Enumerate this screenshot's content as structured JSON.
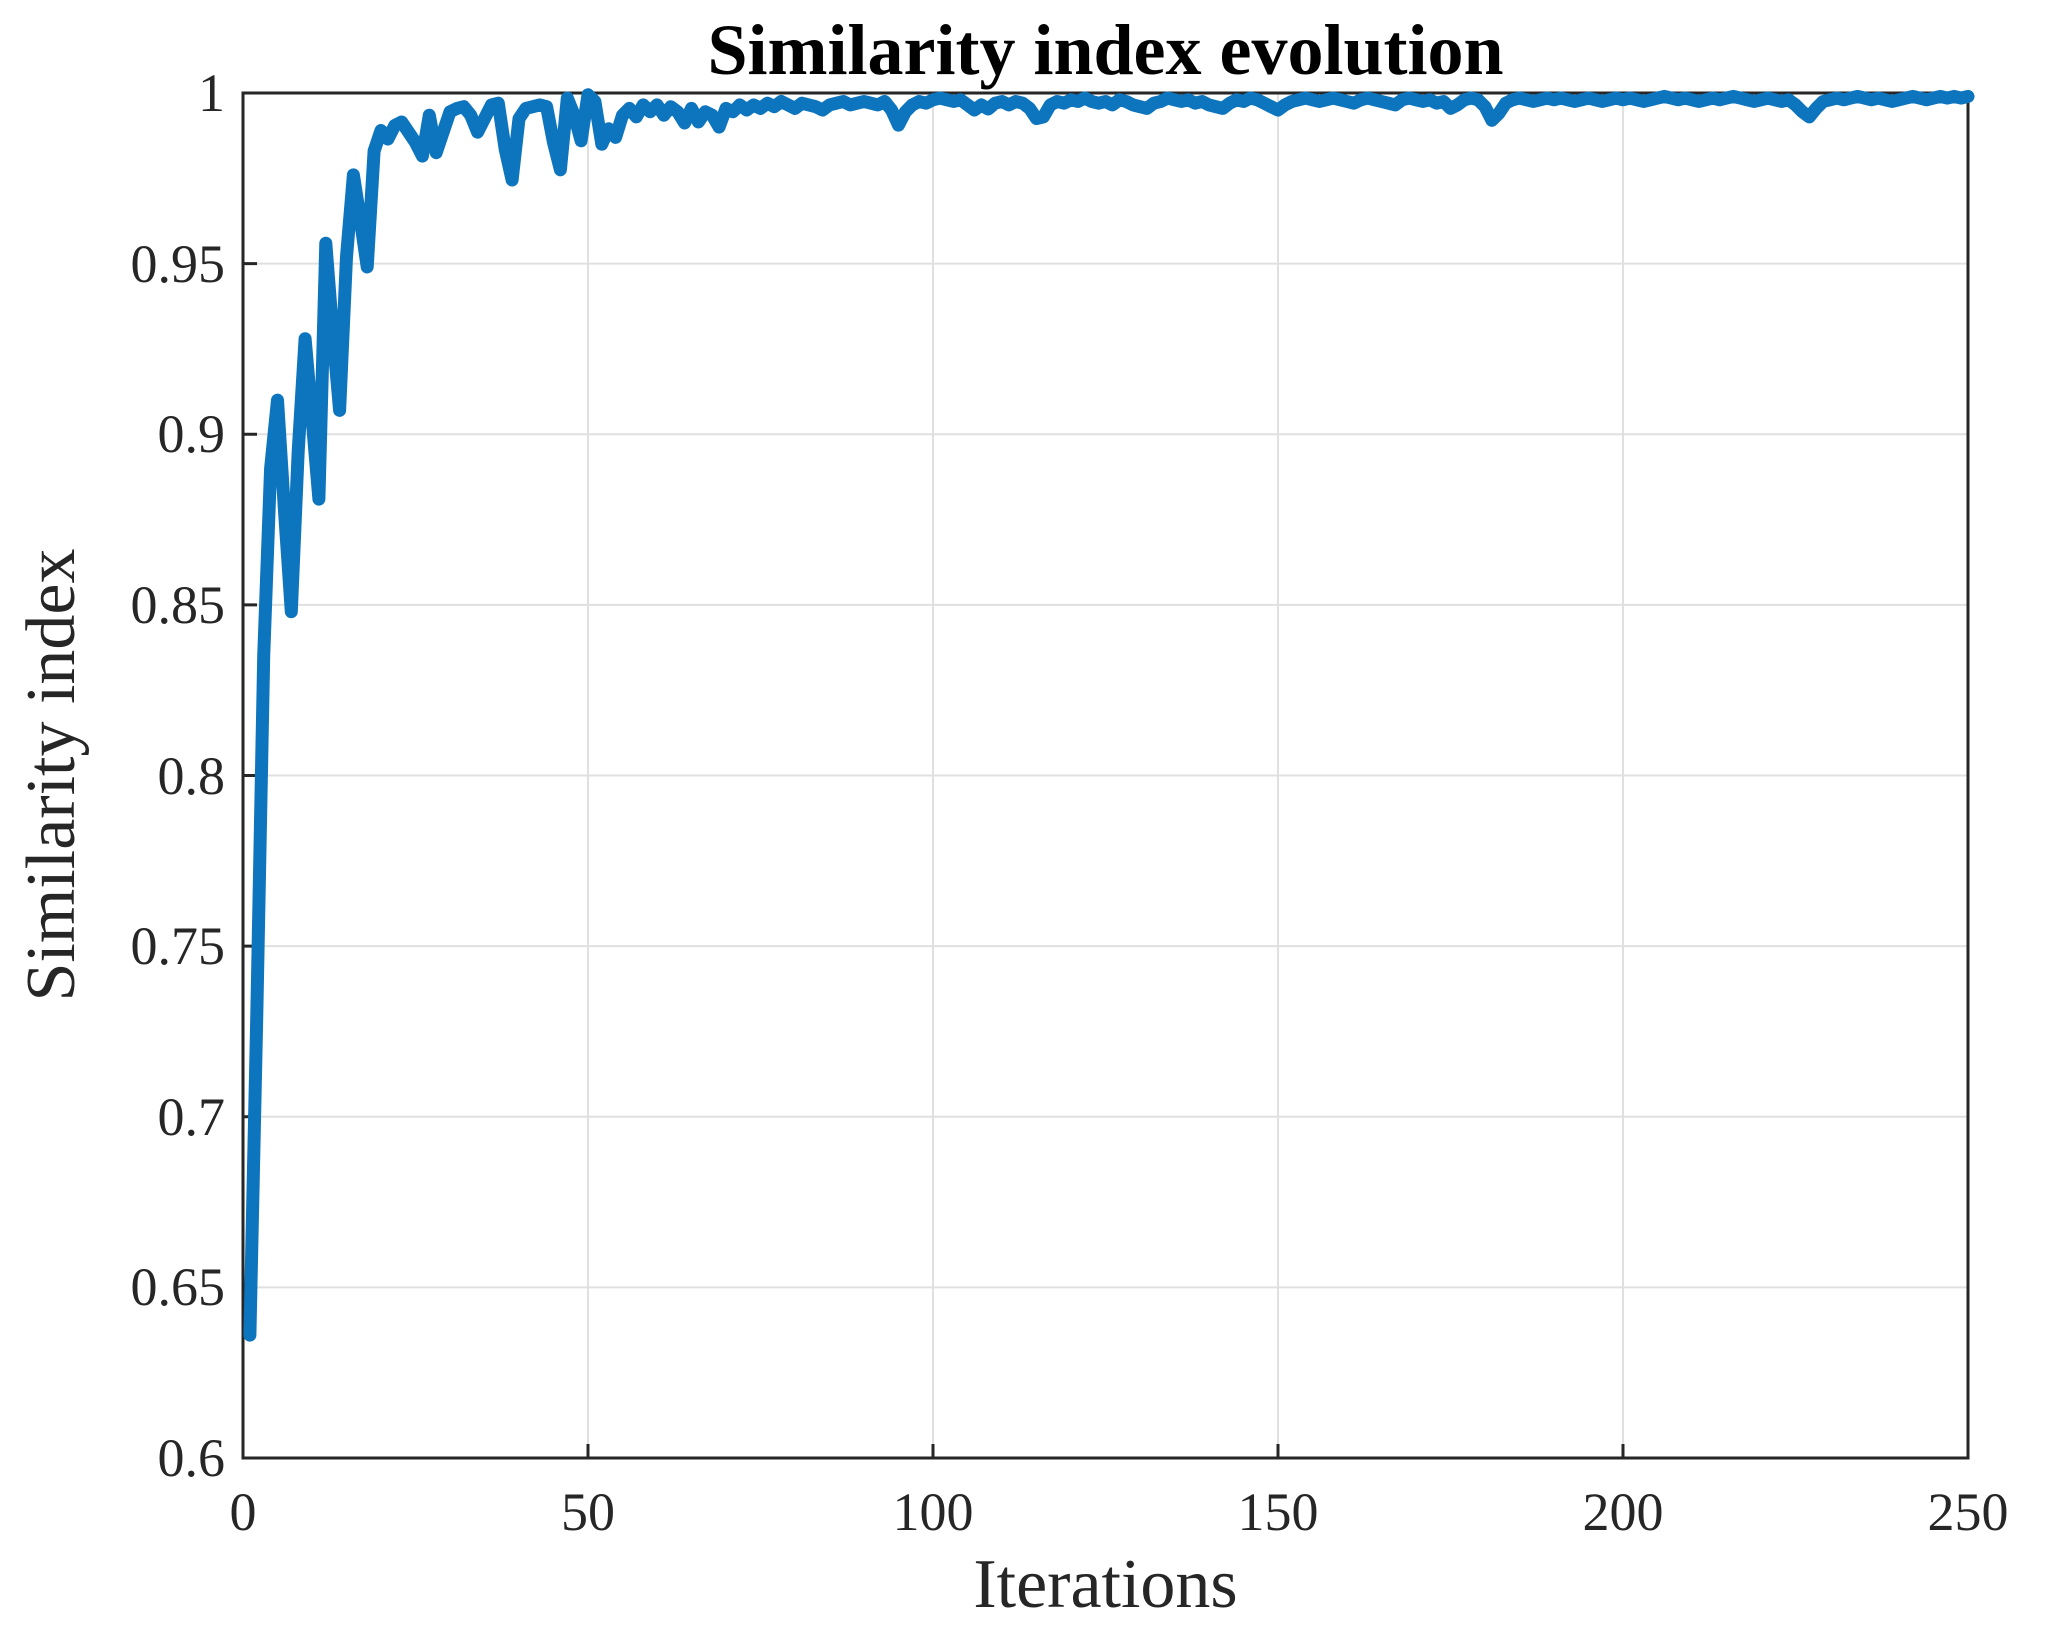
{
  "chart_data": {
    "type": "line",
    "title": "Similarity index evolution",
    "xlabel": "Iterations",
    "ylabel": "Similarity index",
    "xlim": [
      0,
      250
    ],
    "ylim": [
      0.6,
      1.0
    ],
    "xticks": [
      0,
      50,
      100,
      150,
      200,
      250
    ],
    "yticks": [
      0.6,
      0.65,
      0.7,
      0.75,
      0.8,
      0.85,
      0.9,
      0.95,
      1
    ],
    "grid": true,
    "legend": "none",
    "line_color": "#0d74be",
    "line_width": 13,
    "axis_color": "#262626",
    "grid_color": "#e0e0e0",
    "series": [
      {
        "name": "similarity-index",
        "x_start": 1,
        "x_step": 1,
        "values": [
          0.636,
          0.73,
          0.835,
          0.89,
          0.91,
          0.878,
          0.848,
          0.895,
          0.928,
          0.905,
          0.881,
          0.956,
          0.93,
          0.907,
          0.952,
          0.976,
          0.963,
          0.949,
          0.983,
          0.989,
          0.9865,
          0.9905,
          0.9915,
          0.9885,
          0.9855,
          0.9815,
          0.9935,
          0.9825,
          0.9885,
          0.9945,
          0.9955,
          0.996,
          0.9935,
          0.9885,
          0.9925,
          0.9965,
          0.997,
          0.9835,
          0.9745,
          0.9925,
          0.9955,
          0.996,
          0.9965,
          0.996,
          0.9855,
          0.9775,
          0.9985,
          0.9935,
          0.986,
          0.9995,
          0.9975,
          0.985,
          0.9895,
          0.987,
          0.9935,
          0.9955,
          0.993,
          0.9965,
          0.9945,
          0.9965,
          0.9935,
          0.996,
          0.9945,
          0.9912,
          0.9955,
          0.9915,
          0.9945,
          0.9935,
          0.99,
          0.9955,
          0.9945,
          0.9965,
          0.995,
          0.9965,
          0.9955,
          0.997,
          0.996,
          0.9975,
          0.9965,
          0.9955,
          0.997,
          0.9965,
          0.996,
          0.995,
          0.9965,
          0.997,
          0.9975,
          0.9965,
          0.997,
          0.9975,
          0.997,
          0.9965,
          0.9975,
          0.995,
          0.9906,
          0.9945,
          0.9965,
          0.9975,
          0.997,
          0.998,
          0.9985,
          0.998,
          0.9975,
          0.998,
          0.9965,
          0.995,
          0.9965,
          0.9953,
          0.997,
          0.9975,
          0.9965,
          0.9975,
          0.997,
          0.9955,
          0.9925,
          0.993,
          0.9965,
          0.9975,
          0.997,
          0.998,
          0.9975,
          0.9985,
          0.9975,
          0.997,
          0.9975,
          0.9965,
          0.998,
          0.9975,
          0.9965,
          0.996,
          0.9955,
          0.997,
          0.9975,
          0.9985,
          0.998,
          0.9975,
          0.998,
          0.997,
          0.9975,
          0.9965,
          0.996,
          0.9955,
          0.997,
          0.998,
          0.9975,
          0.9985,
          0.998,
          0.997,
          0.996,
          0.995,
          0.9965,
          0.9975,
          0.998,
          0.9985,
          0.998,
          0.9975,
          0.998,
          0.9985,
          0.998,
          0.9975,
          0.997,
          0.998,
          0.9985,
          0.998,
          0.9975,
          0.997,
          0.9965,
          0.998,
          0.9985,
          0.998,
          0.9975,
          0.998,
          0.997,
          0.9975,
          0.9955,
          0.9965,
          0.998,
          0.9985,
          0.998,
          0.996,
          0.992,
          0.994,
          0.997,
          0.998,
          0.9985,
          0.998,
          0.9975,
          0.998,
          0.9985,
          0.998,
          0.9985,
          0.998,
          0.9975,
          0.998,
          0.9985,
          0.998,
          0.9975,
          0.998,
          0.9985,
          0.998,
          0.9985,
          0.998,
          0.9975,
          0.998,
          0.9985,
          0.999,
          0.9985,
          0.998,
          0.9985,
          0.998,
          0.9975,
          0.998,
          0.9985,
          0.998,
          0.9985,
          0.999,
          0.9985,
          0.998,
          0.9975,
          0.998,
          0.9985,
          0.998,
          0.9975,
          0.998,
          0.9965,
          0.9945,
          0.993,
          0.9955,
          0.9975,
          0.998,
          0.9985,
          0.998,
          0.9985,
          0.999,
          0.9985,
          0.998,
          0.9985,
          0.998,
          0.9975,
          0.998,
          0.9985,
          0.999,
          0.9985,
          0.998,
          0.9985,
          0.999,
          0.9985,
          0.999,
          0.9985,
          0.999
        ]
      }
    ]
  }
}
